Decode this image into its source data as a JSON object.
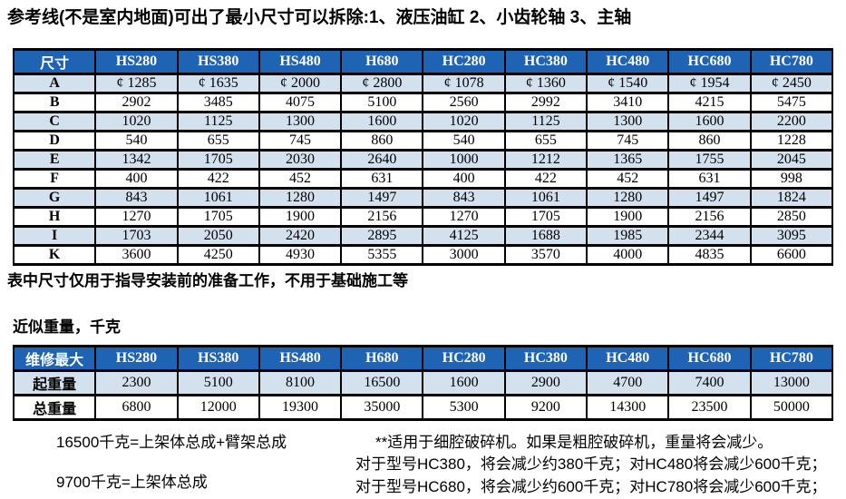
{
  "page": {
    "title": "参考线(不是室内地面)可出了最小尺寸可以拆除:1、液压油缸 2、小齿轮轴 3、主轴",
    "note_below_table": "表中尺寸仅用于指导安装前的准备工作，不用于基础施工等",
    "weight_section_label": "近似重量，千克"
  },
  "colors": {
    "header_blue": "#1e63b4",
    "alt_row_blue": "#d3e1ef",
    "border_black": "#000000",
    "header_text": "#ffffff"
  },
  "dimension_table": {
    "header": [
      "尺寸",
      "HS280",
      "HS380",
      "HS480",
      "H680",
      "HC280",
      "HC380",
      "HC480",
      "HC680",
      "HC780"
    ],
    "rows": [
      {
        "label": "A",
        "values": [
          "¢ 1285",
          "¢ 1635",
          "¢ 2000",
          "¢ 2800",
          "¢ 1078",
          "¢ 1360",
          "¢ 1540",
          "¢ 1954",
          "¢ 2450"
        ]
      },
      {
        "label": "B",
        "values": [
          "2902",
          "3485",
          "4075",
          "5100",
          "2560",
          "2992",
          "3410",
          "4215",
          "5475"
        ]
      },
      {
        "label": "C",
        "values": [
          "1020",
          "1125",
          "1300",
          "1600",
          "1020",
          "1125",
          "1300",
          "1600",
          "2200"
        ]
      },
      {
        "label": "D",
        "values": [
          "540",
          "655",
          "745",
          "860",
          "540",
          "655",
          "745",
          "860",
          "1228"
        ]
      },
      {
        "label": "E",
        "values": [
          "1342",
          "1705",
          "2030",
          "2640",
          "1000",
          "1212",
          "1365",
          "1755",
          "2045"
        ]
      },
      {
        "label": "F",
        "values": [
          "400",
          "422",
          "452",
          "631",
          "400",
          "422",
          "452",
          "631",
          "998"
        ]
      },
      {
        "label": "G",
        "values": [
          "843",
          "1061",
          "1280",
          "1497",
          "843",
          "1061",
          "1280",
          "1497",
          "1824"
        ]
      },
      {
        "label": "H",
        "values": [
          "1270",
          "1705",
          "1900",
          "2156",
          "1270",
          "1705",
          "1900",
          "2156",
          "2850"
        ]
      },
      {
        "label": "I",
        "values": [
          "1703",
          "2050",
          "2420",
          "2895",
          "4125",
          "1688",
          "1985",
          "2344",
          "3095"
        ]
      },
      {
        "label": "K",
        "values": [
          "3600",
          "4250",
          "4930",
          "5355",
          "3000",
          "3570",
          "4000",
          "4835",
          "6600"
        ]
      }
    ]
  },
  "weight_table": {
    "header": [
      "维修最大",
      "HS280",
      "HS380",
      "HS480",
      "H680",
      "HC280",
      "HC380",
      "HC480",
      "HC680",
      "HC780"
    ],
    "rows": [
      {
        "label": "起重量",
        "values": [
          "2300",
          "5100",
          "8100",
          "16500",
          "1600",
          "2900",
          "4700",
          "7400",
          "13000"
        ]
      },
      {
        "label": "总重量",
        "values": [
          "6800",
          "12000",
          "19300",
          "35000",
          "5300",
          "9200",
          "14300",
          "23500",
          "50000"
        ]
      }
    ]
  },
  "footnotes": {
    "left": [
      "16500千克=上架体总成+臂架总成",
      "9700千克=上架体总成"
    ],
    "right": [
      "**适用于细腔破碎机。如果是粗腔破碎机，重量将会减少。",
      "对于型号HC380，将会减少约380千克；对HC480将会减少600千克；",
      "对于型号HC680，将会减少约600千克；对HC780将会减少600千克；"
    ]
  }
}
